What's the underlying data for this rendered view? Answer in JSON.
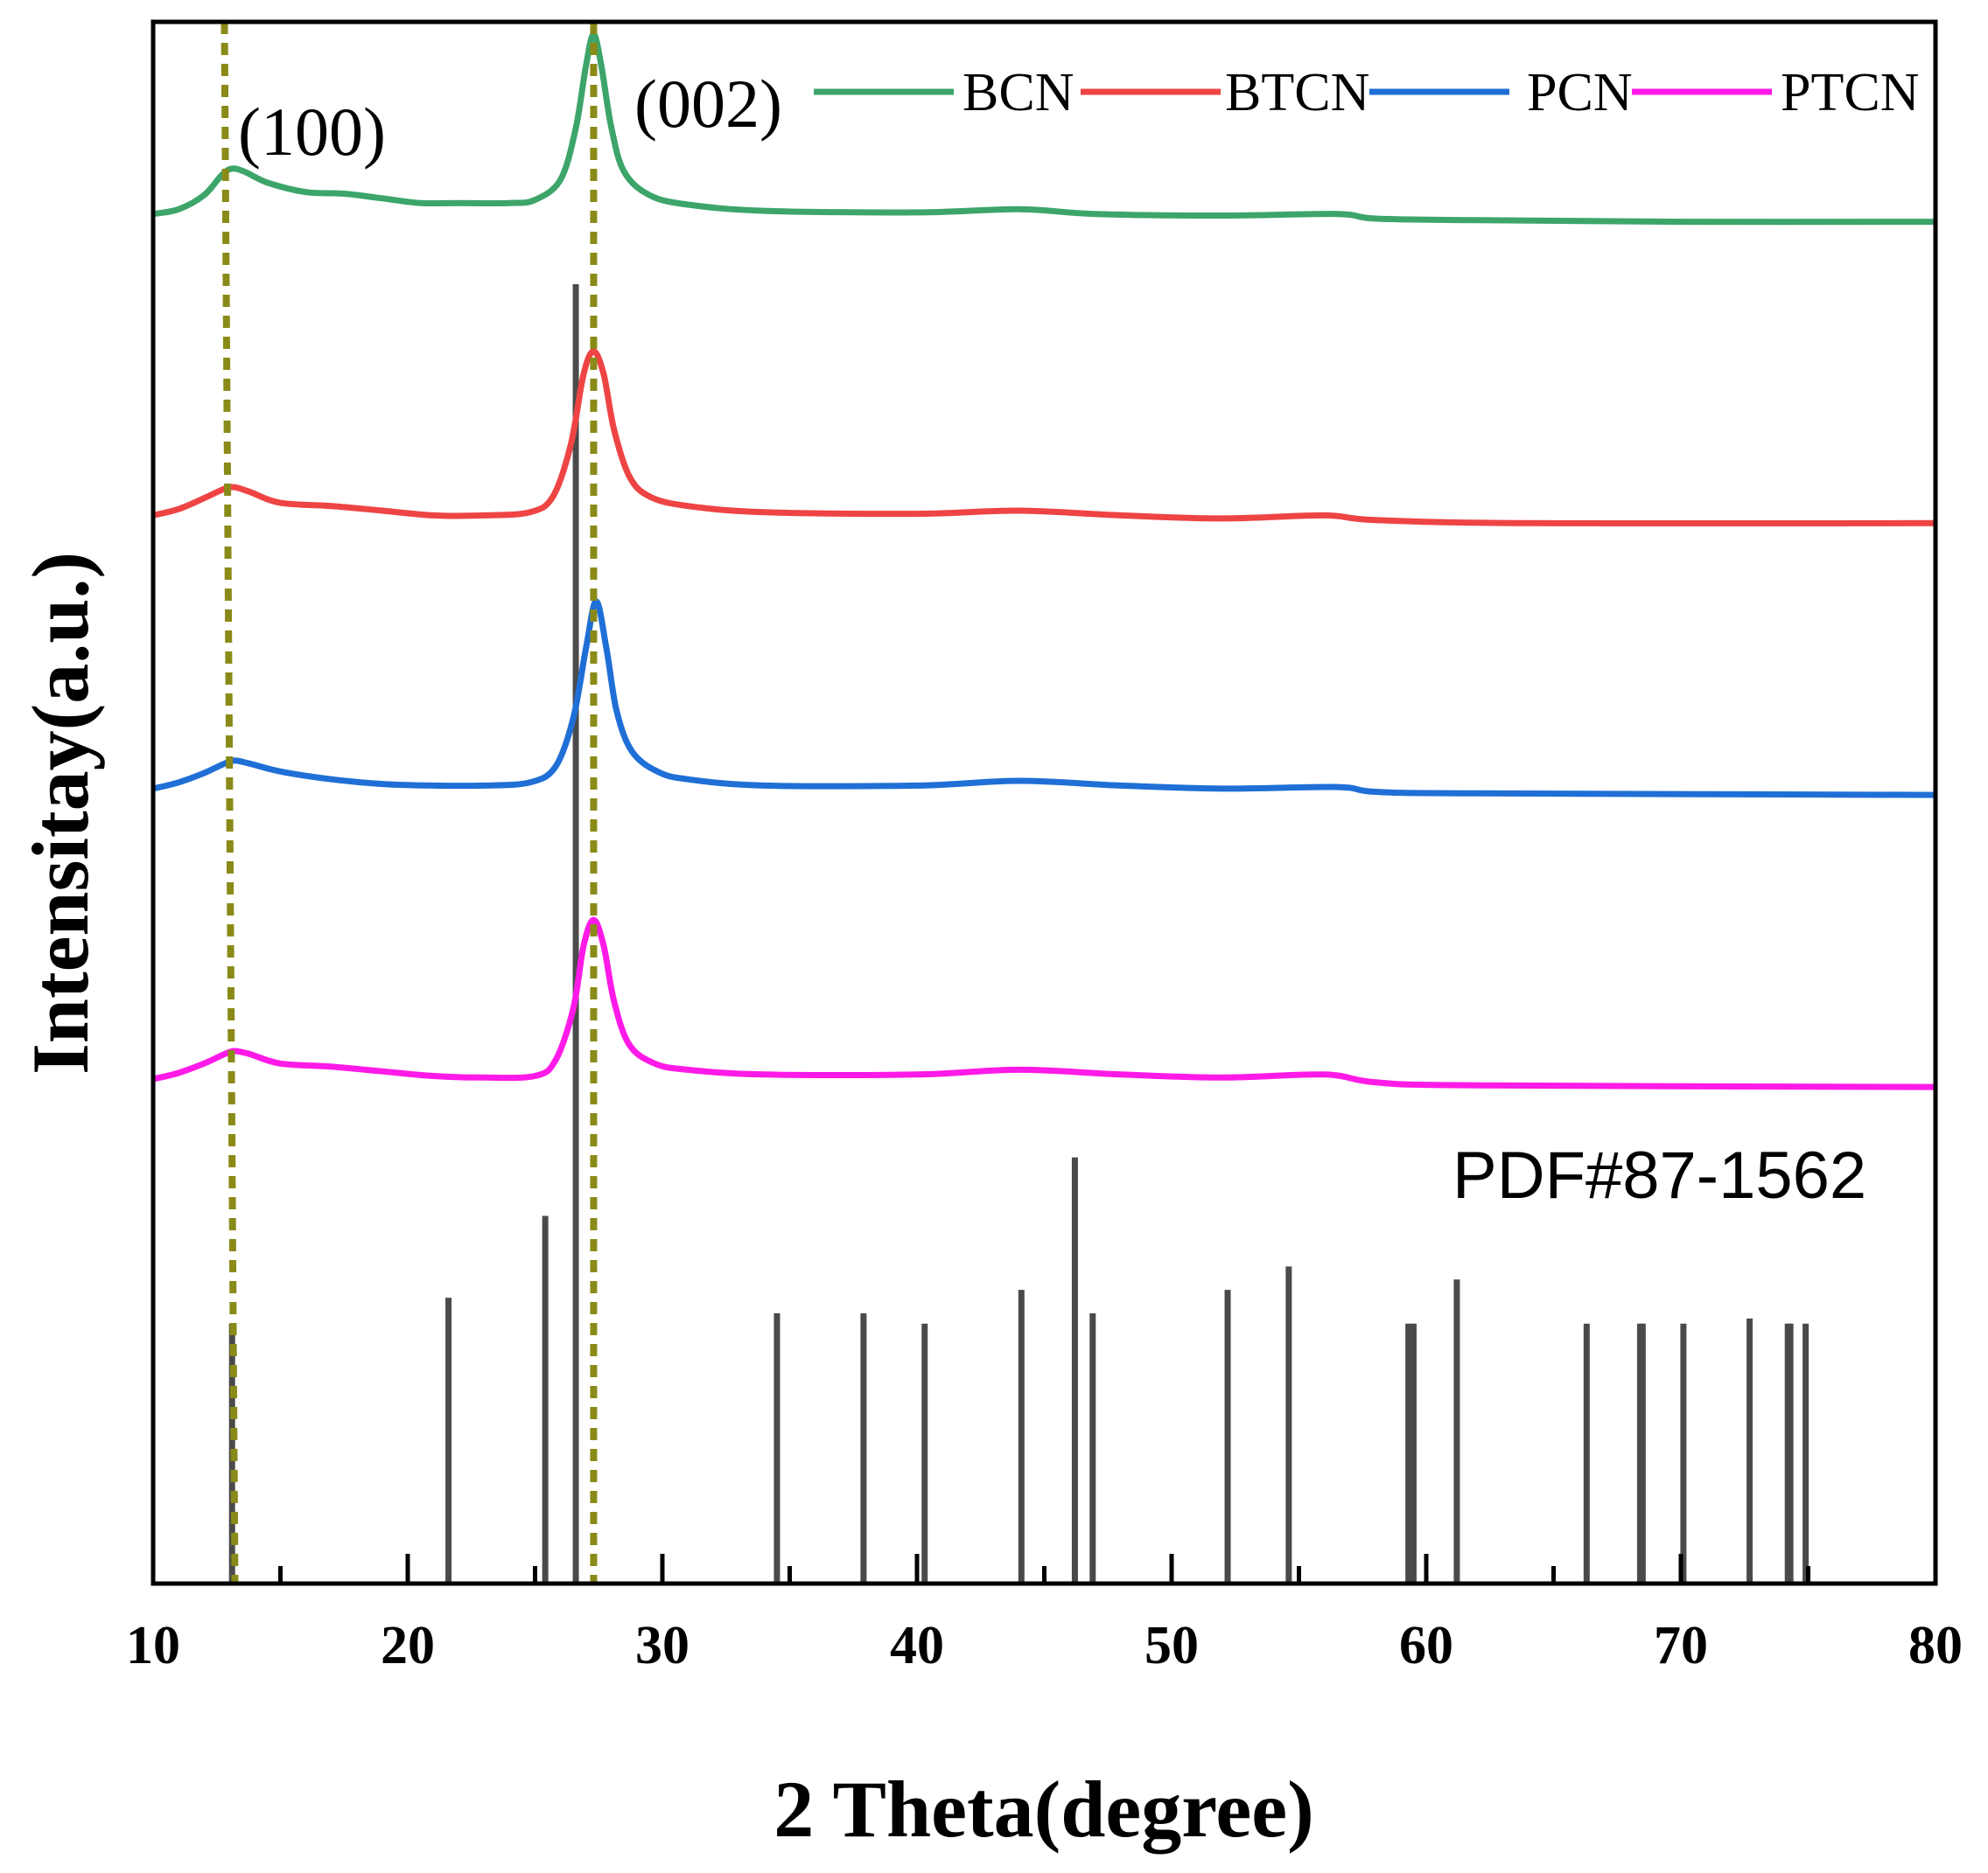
{
  "chart_data": {
    "type": "line",
    "title": "",
    "xlabel": "2 Theta(degree)",
    "ylabel": "Intensitay(a.u.)",
    "xlim": [
      10,
      80
    ],
    "xticks": [
      10,
      20,
      30,
      40,
      50,
      60,
      70,
      80
    ],
    "x_minor_step": 5,
    "ylim": [
      0,
      1
    ],
    "yticks_visible": false,
    "grid": false,
    "legend_position": "top-right",
    "series": [
      {
        "name": "BCN",
        "color": "#3da56a",
        "offset": 0.877,
        "points": [
          [
            10,
            0.0
          ],
          [
            11,
            0.003
          ],
          [
            12,
            0.012
          ],
          [
            12.7,
            0.025
          ],
          [
            13.1,
            0.029
          ],
          [
            13.6,
            0.027
          ],
          [
            14.5,
            0.02
          ],
          [
            16,
            0.014
          ],
          [
            17.5,
            0.013
          ],
          [
            19,
            0.01
          ],
          [
            20.5,
            0.007
          ],
          [
            22,
            0.007
          ],
          [
            24,
            0.007
          ],
          [
            25,
            0.009
          ],
          [
            26,
            0.022
          ],
          [
            26.6,
            0.055
          ],
          [
            27.0,
            0.095
          ],
          [
            27.3,
            0.115
          ],
          [
            27.6,
            0.095
          ],
          [
            28.0,
            0.055
          ],
          [
            28.5,
            0.027
          ],
          [
            29.5,
            0.012
          ],
          [
            31,
            0.006
          ],
          [
            34,
            0.002
          ],
          [
            40,
            0.001
          ],
          [
            44,
            0.003
          ],
          [
            47,
            0.0
          ],
          [
            52,
            -0.001
          ],
          [
            56.5,
            0.0
          ],
          [
            58,
            -0.003
          ],
          [
            62,
            -0.004
          ],
          [
            70,
            -0.005
          ],
          [
            80,
            -0.005
          ]
        ]
      },
      {
        "name": "BTCN",
        "color": "#ee4444",
        "offset": 0.684,
        "points": [
          [
            10,
            0.0
          ],
          [
            11,
            0.004
          ],
          [
            12,
            0.011
          ],
          [
            12.8,
            0.017
          ],
          [
            13.2,
            0.018
          ],
          [
            13.8,
            0.015
          ],
          [
            15,
            0.008
          ],
          [
            17,
            0.006
          ],
          [
            19,
            0.003
          ],
          [
            21,
            0.0
          ],
          [
            23,
            0.0
          ],
          [
            24.8,
            0.002
          ],
          [
            25.7,
            0.012
          ],
          [
            26.4,
            0.045
          ],
          [
            26.9,
            0.09
          ],
          [
            27.3,
            0.105
          ],
          [
            27.7,
            0.09
          ],
          [
            28.1,
            0.055
          ],
          [
            28.7,
            0.025
          ],
          [
            29.5,
            0.012
          ],
          [
            31,
            0.006
          ],
          [
            34,
            0.002
          ],
          [
            40,
            0.001
          ],
          [
            44,
            0.003
          ],
          [
            48,
            0.0
          ],
          [
            52,
            -0.002
          ],
          [
            56,
            0.0
          ],
          [
            58,
            -0.003
          ],
          [
            64,
            -0.005
          ],
          [
            80,
            -0.005
          ]
        ]
      },
      {
        "name": "PCN",
        "color": "#1f6fd6",
        "offset": 0.509,
        "points": [
          [
            10,
            0.0
          ],
          [
            11,
            0.004
          ],
          [
            12,
            0.01
          ],
          [
            12.8,
            0.016
          ],
          [
            13.2,
            0.018
          ],
          [
            13.8,
            0.016
          ],
          [
            15,
            0.011
          ],
          [
            17,
            0.006
          ],
          [
            19,
            0.003
          ],
          [
            21,
            0.002
          ],
          [
            23,
            0.002
          ],
          [
            24.8,
            0.004
          ],
          [
            25.8,
            0.014
          ],
          [
            26.5,
            0.045
          ],
          [
            27.0,
            0.09
          ],
          [
            27.4,
            0.12
          ],
          [
            27.8,
            0.09
          ],
          [
            28.2,
            0.05
          ],
          [
            28.8,
            0.024
          ],
          [
            29.8,
            0.011
          ],
          [
            31,
            0.006
          ],
          [
            34,
            0.002
          ],
          [
            40,
            0.002
          ],
          [
            44,
            0.005
          ],
          [
            48,
            0.002
          ],
          [
            52,
            0.0
          ],
          [
            56.5,
            0.001
          ],
          [
            58,
            -0.002
          ],
          [
            62,
            -0.003
          ],
          [
            80,
            -0.004
          ]
        ]
      },
      {
        "name": "PTCN",
        "color": "#ff1ae8",
        "offset": 0.323,
        "points": [
          [
            10,
            0.0
          ],
          [
            11,
            0.004
          ],
          [
            12,
            0.01
          ],
          [
            12.8,
            0.016
          ],
          [
            13.2,
            0.018
          ],
          [
            13.8,
            0.016
          ],
          [
            15,
            0.01
          ],
          [
            17,
            0.008
          ],
          [
            19,
            0.005
          ],
          [
            21,
            0.002
          ],
          [
            23,
            0.001
          ],
          [
            25,
            0.002
          ],
          [
            25.8,
            0.012
          ],
          [
            26.5,
            0.045
          ],
          [
            26.9,
            0.085
          ],
          [
            27.3,
            0.102
          ],
          [
            27.7,
            0.085
          ],
          [
            28.1,
            0.05
          ],
          [
            28.7,
            0.022
          ],
          [
            29.7,
            0.01
          ],
          [
            31,
            0.006
          ],
          [
            34,
            0.003
          ],
          [
            40,
            0.003
          ],
          [
            44,
            0.006
          ],
          [
            48,
            0.003
          ],
          [
            52,
            0.001
          ],
          [
            56,
            0.003
          ],
          [
            58,
            -0.002
          ],
          [
            62,
            -0.004
          ],
          [
            80,
            -0.005
          ]
        ]
      }
    ],
    "reference": {
      "label": "PDF#87-1562",
      "color": "#4a4a4a",
      "positions": [
        13.1,
        21.6,
        25.4,
        26.6,
        34.5,
        37.9,
        40.3,
        44.1,
        46.2,
        46.9,
        52.2,
        54.6,
        59.3,
        59.5,
        61.2,
        66.3,
        68.4,
        68.5,
        70.1,
        72.7,
        74.2,
        74.3,
        74.9
      ],
      "intensities": [
        0.2,
        0.22,
        0.283,
        1.0,
        0.208,
        0.208,
        0.2,
        0.226,
        0.328,
        0.208,
        0.226,
        0.244,
        0.2,
        0.2,
        0.234,
        0.2,
        0.2,
        0.2,
        0.2,
        0.204,
        0.2,
        0.2,
        0.2
      ]
    },
    "guide_lines": {
      "color": "#8a8a18",
      "positions": [
        12.8,
        27.3
      ],
      "labels": [
        "(100)",
        "(002)"
      ]
    }
  }
}
